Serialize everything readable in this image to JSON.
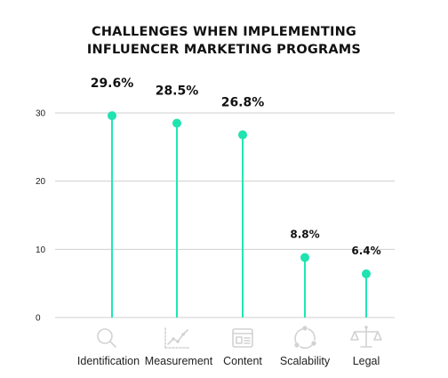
{
  "chart_data": {
    "type": "lollipop",
    "title_lines": [
      "CHALLENGES WHEN IMPLEMENTING",
      "INFLUENCER MARKETING PROGRAMS"
    ],
    "categories": [
      "Identification",
      "Measurement",
      "Content",
      "Scalability",
      "Legal"
    ],
    "values": [
      29.6,
      28.5,
      26.8,
      8.8,
      6.4
    ],
    "data_labels": [
      "29.6%",
      "28.5%",
      "26.8%",
      "8.8%",
      "6.4%"
    ],
    "icons": [
      "magnifier-icon",
      "line-chart-icon",
      "document-layout-icon",
      "cycle-network-icon",
      "scales-icon"
    ],
    "ylim": [
      0,
      30
    ],
    "yticks": [
      0,
      10,
      20,
      30
    ],
    "grid": true,
    "colors": {
      "stem": "#21e6b4",
      "dot": "#1fe3b0",
      "grid": "#cfcfcf",
      "icon": "#d2d2d2"
    }
  }
}
